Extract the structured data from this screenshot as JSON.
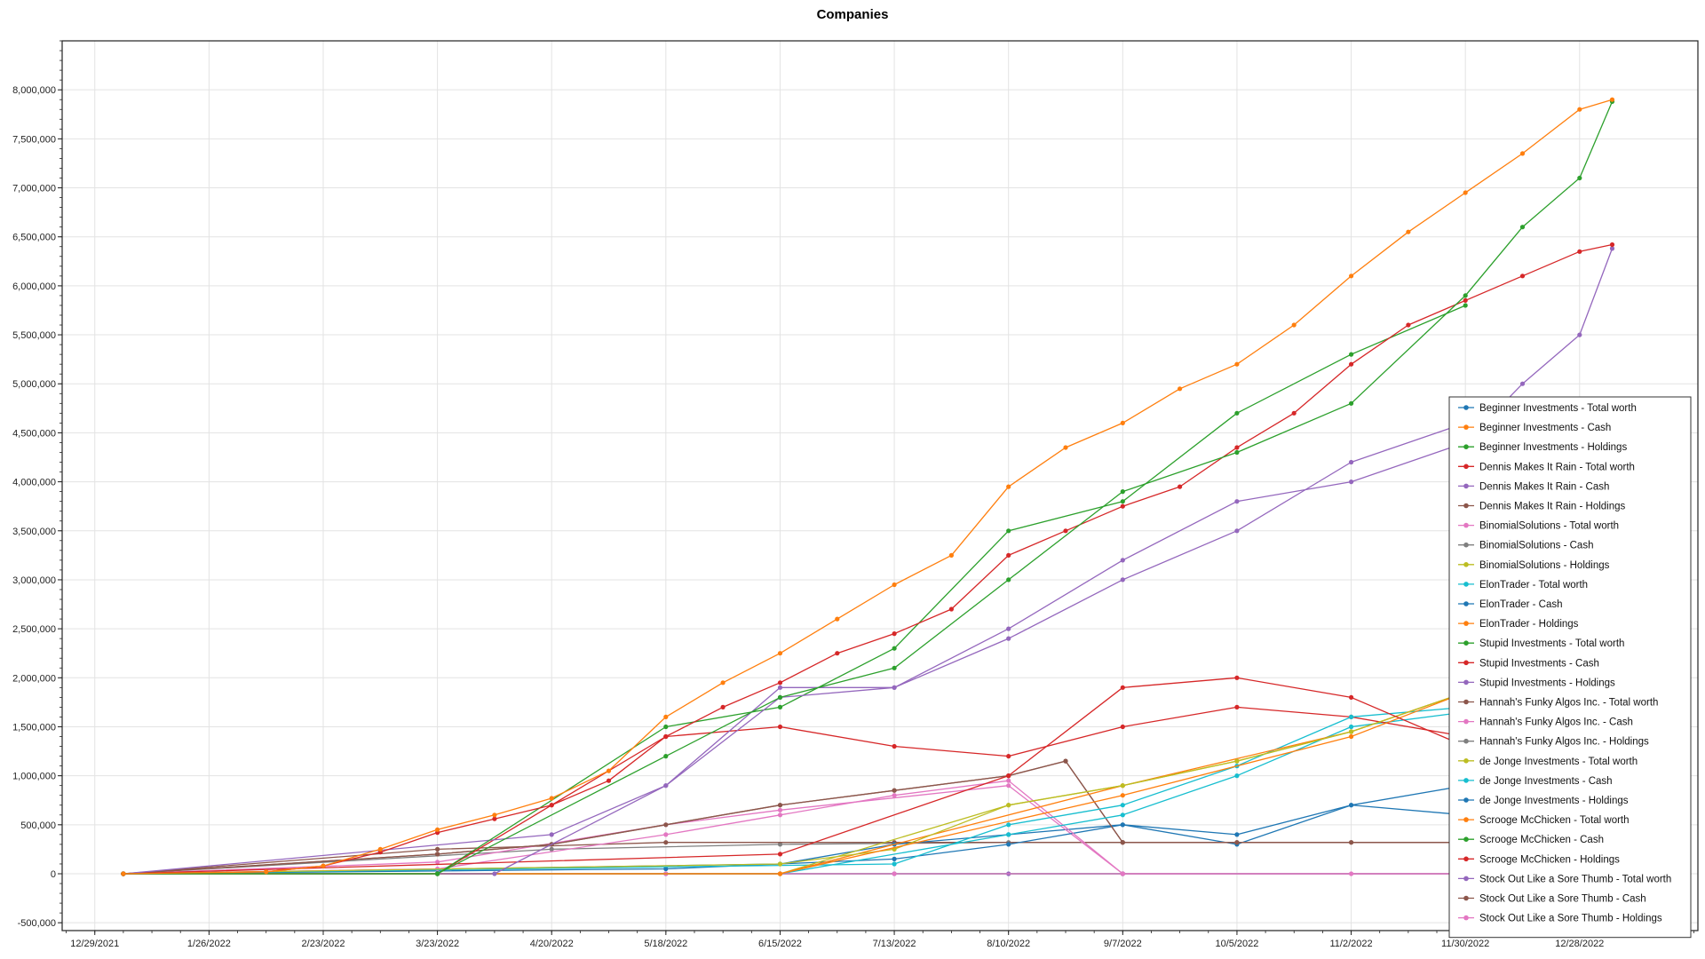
{
  "chart_data": {
    "type": "line",
    "title": "Companies",
    "xlabel": "",
    "ylabel": "",
    "x_ticks": [
      "12/29/2021",
      "1/26/2022",
      "2/23/2022",
      "3/23/2022",
      "4/20/2022",
      "5/18/2022",
      "6/15/2022",
      "7/13/2022",
      "8/10/2022",
      "9/7/2022",
      "10/5/2022",
      "11/2/2022",
      "11/30/2022",
      "12/28/2022"
    ],
    "x_range": [
      "2021-12-21",
      "2023-01-26"
    ],
    "y_ticks": [
      -500000,
      0,
      500000,
      1000000,
      1500000,
      2000000,
      2500000,
      3000000,
      3500000,
      4000000,
      4500000,
      5000000,
      5500000,
      6000000,
      6500000,
      7000000,
      7500000,
      8000000
    ],
    "ylim": [
      -580000,
      8500000
    ],
    "grid": true,
    "legend_position": "right",
    "series": [
      {
        "name": "Beginner Investments - Total worth",
        "color": "#1f77b4",
        "x": [
          "2022-01-05",
          "2022-03-23",
          "2022-06-15",
          "2022-09-07",
          "2022-11-30",
          "2023-01-05"
        ],
        "y": [
          0,
          0,
          0,
          0,
          0,
          0
        ]
      },
      {
        "name": "Beginner Investments - Cash",
        "color": "#ff7f0e",
        "x": [
          "2022-01-05",
          "2022-02-09",
          "2022-02-23",
          "2022-03-09",
          "2022-03-23",
          "2022-04-06",
          "2022-04-20",
          "2022-05-04",
          "2022-05-18",
          "2022-06-01",
          "2022-06-15",
          "2022-06-29",
          "2022-07-13",
          "2022-07-27",
          "2022-08-10",
          "2022-08-24",
          "2022-09-07",
          "2022-09-21",
          "2022-10-05",
          "2022-10-19",
          "2022-11-02",
          "2022-11-16",
          "2022-11-30",
          "2022-12-14",
          "2022-12-28",
          "2023-01-05"
        ],
        "y": [
          0,
          20000,
          80000,
          250000,
          450000,
          600000,
          770000,
          1050000,
          1600000,
          1950000,
          2250000,
          2600000,
          2950000,
          3250000,
          3950000,
          4350000,
          4600000,
          4950000,
          5200000,
          5600000,
          6100000,
          6550000,
          6950000,
          7350000,
          7800000,
          7900000
        ]
      },
      {
        "name": "Beginner Investments - Holdings",
        "color": "#2ca02c",
        "x": [
          "2022-01-05",
          "2022-03-23",
          "2022-05-18",
          "2022-06-15",
          "2022-07-13",
          "2022-08-10",
          "2022-09-07",
          "2022-10-05",
          "2022-11-02",
          "2022-11-30",
          "2022-12-14",
          "2022-12-28",
          "2023-01-05"
        ],
        "y": [
          0,
          0,
          1200000,
          1800000,
          2100000,
          3000000,
          3900000,
          4300000,
          4800000,
          5900000,
          6600000,
          7100000,
          7880000
        ]
      },
      {
        "name": "Dennis Makes It Rain - Total worth",
        "color": "#d62728",
        "x": [
          "2022-01-05",
          "2022-02-09",
          "2022-02-23",
          "2022-03-09",
          "2022-03-23",
          "2022-04-06",
          "2022-04-20",
          "2022-05-04",
          "2022-05-18",
          "2022-06-01",
          "2022-06-15",
          "2022-06-29",
          "2022-07-13",
          "2022-07-27",
          "2022-08-10",
          "2022-08-24",
          "2022-09-07",
          "2022-09-21",
          "2022-10-05",
          "2022-10-19",
          "2022-11-02",
          "2022-11-16",
          "2022-11-30",
          "2022-12-14",
          "2022-12-28",
          "2023-01-05"
        ],
        "y": [
          0,
          20000,
          80000,
          220000,
          420000,
          560000,
          700000,
          950000,
          1400000,
          1700000,
          1950000,
          2250000,
          2450000,
          2700000,
          3250000,
          3500000,
          3750000,
          3950000,
          4350000,
          4700000,
          5200000,
          5600000,
          5850000,
          6100000,
          6350000,
          6420000
        ]
      },
      {
        "name": "Dennis Makes It Rain - Cash",
        "color": "#9467bd",
        "x": [
          "2022-01-05",
          "2022-04-06",
          "2022-05-18",
          "2022-06-15",
          "2022-07-13",
          "2022-08-10",
          "2022-09-07",
          "2022-10-05",
          "2022-11-02",
          "2022-11-30",
          "2022-12-14",
          "2022-12-28",
          "2023-01-05"
        ],
        "y": [
          0,
          0,
          900000,
          1800000,
          1900000,
          2500000,
          3200000,
          3800000,
          4000000,
          4400000,
          5000000,
          5500000,
          6380000
        ]
      },
      {
        "name": "Dennis Makes It Rain - Holdings",
        "color": "#8c564b",
        "x": [
          "2022-01-05",
          "2022-03-23",
          "2022-04-20",
          "2022-06-15",
          "2022-07-13",
          "2022-08-10",
          "2022-08-24",
          "2022-09-07",
          "2022-10-05",
          "2022-11-02",
          "2022-11-30",
          "2023-01-05"
        ],
        "y": [
          0,
          200000,
          300000,
          700000,
          850000,
          1000000,
          1150000,
          320000,
          320000,
          320000,
          320000,
          320000
        ]
      },
      {
        "name": "BinomialSolutions - Total worth",
        "color": "#e377c2",
        "x": [
          "2022-01-05",
          "2022-03-23",
          "2022-05-18",
          "2022-06-15",
          "2022-08-10",
          "2022-09-07",
          "2022-11-02",
          "2022-11-30",
          "2023-01-05"
        ],
        "y": [
          0,
          120000,
          500000,
          650000,
          900000,
          0,
          0,
          0,
          0
        ]
      },
      {
        "name": "BinomialSolutions - Cash",
        "color": "#7f7f7f",
        "x": [
          "2022-01-05",
          "2022-06-15",
          "2022-11-30",
          "2023-01-05"
        ],
        "y": [
          0,
          0,
          0,
          0
        ]
      },
      {
        "name": "BinomialSolutions - Holdings",
        "color": "#bcbd22",
        "x": [
          "2022-01-05",
          "2022-06-15",
          "2022-08-10",
          "2022-09-07",
          "2022-10-05",
          "2022-11-02",
          "2022-11-30",
          "2022-12-14"
        ],
        "y": [
          0,
          0,
          700000,
          900000,
          1150000,
          1450000,
          1850000,
          1880000
        ]
      },
      {
        "name": "ElonTrader - Total worth",
        "color": "#17becf",
        "x": [
          "2022-01-05",
          "2022-06-15",
          "2022-08-10",
          "2022-09-07",
          "2022-10-05",
          "2022-11-02",
          "2022-11-30"
        ],
        "y": [
          0,
          0,
          400000,
          600000,
          1000000,
          1500000,
          1650000
        ]
      },
      {
        "name": "ElonTrader - Cash",
        "color": "#1f77b4",
        "x": [
          "2022-01-05",
          "2022-05-18",
          "2022-07-13",
          "2022-08-10",
          "2022-09-07",
          "2022-10-05",
          "2022-11-02",
          "2022-11-30"
        ],
        "y": [
          0,
          50000,
          150000,
          300000,
          500000,
          400000,
          700000,
          900000
        ]
      },
      {
        "name": "ElonTrader - Holdings",
        "color": "#ff7f0e",
        "x": [
          "2022-01-05",
          "2022-06-15",
          "2022-09-07",
          "2022-11-02",
          "2022-11-30",
          "2022-12-14"
        ],
        "y": [
          0,
          0,
          900000,
          1450000,
          1850000,
          1900000
        ]
      },
      {
        "name": "Stupid Investments - Total worth",
        "color": "#2ca02c",
        "x": [
          "2022-01-05",
          "2022-03-23",
          "2022-05-18",
          "2022-06-15",
          "2022-07-13",
          "2022-08-10",
          "2022-09-07",
          "2022-10-05",
          "2022-11-02",
          "2022-11-30"
        ],
        "y": [
          0,
          0,
          1500000,
          1700000,
          2300000,
          3500000,
          3800000,
          4700000,
          5300000,
          5800000
        ]
      },
      {
        "name": "Stupid Investments - Cash",
        "color": "#d62728",
        "x": [
          "2022-01-05",
          "2022-03-23",
          "2022-04-20",
          "2022-05-18",
          "2022-06-15",
          "2022-07-13",
          "2022-08-10",
          "2022-09-07",
          "2022-10-05",
          "2022-11-02",
          "2022-11-30"
        ],
        "y": [
          0,
          0,
          700000,
          1400000,
          1500000,
          1300000,
          1200000,
          1500000,
          1700000,
          1600000,
          1400000
        ]
      },
      {
        "name": "Stupid Investments - Holdings",
        "color": "#9467bd",
        "x": [
          "2022-01-05",
          "2022-04-20",
          "2022-05-18",
          "2022-06-15",
          "2022-07-13",
          "2022-08-10",
          "2022-09-07",
          "2022-10-05",
          "2022-11-02",
          "2022-11-30"
        ],
        "y": [
          0,
          400000,
          900000,
          1900000,
          1900000,
          2400000,
          3000000,
          3500000,
          4200000,
          4600000
        ]
      },
      {
        "name": "Hannah's Funky Algos Inc. - Total worth",
        "color": "#8c564b",
        "x": [
          "2022-01-05",
          "2022-03-23",
          "2022-04-20",
          "2022-05-18",
          "2022-06-15",
          "2022-07-13",
          "2022-08-10",
          "2022-08-24",
          "2022-09-07",
          "2022-10-05",
          "2022-11-02",
          "2022-11-30",
          "2023-01-05"
        ],
        "y": [
          0,
          200000,
          300000,
          500000,
          700000,
          850000,
          1000000,
          1150000,
          320000,
          320000,
          320000,
          320000,
          320000
        ]
      },
      {
        "name": "Hannah's Funky Algos Inc. - Cash",
        "color": "#e377c2",
        "x": [
          "2022-01-05",
          "2022-03-23",
          "2022-05-18",
          "2022-06-15",
          "2022-07-13",
          "2022-08-10",
          "2022-09-07",
          "2022-11-30",
          "2023-01-05"
        ],
        "y": [
          0,
          50000,
          400000,
          600000,
          800000,
          950000,
          0,
          0,
          0
        ]
      },
      {
        "name": "Hannah's Funky Algos Inc. - Holdings",
        "color": "#7f7f7f",
        "x": [
          "2022-01-05",
          "2022-04-20",
          "2022-06-15",
          "2022-08-10",
          "2022-09-07",
          "2022-11-30",
          "2023-01-05"
        ],
        "y": [
          0,
          250000,
          300000,
          320000,
          320000,
          320000,
          320000
        ]
      },
      {
        "name": "de Jonge Investments - Total worth",
        "color": "#bcbd22",
        "x": [
          "2022-01-05",
          "2022-06-15",
          "2022-07-13",
          "2022-08-10",
          "2022-09-07",
          "2022-10-05",
          "2022-11-02",
          "2022-11-30",
          "2022-12-14"
        ],
        "y": [
          0,
          100000,
          250000,
          700000,
          900000,
          1150000,
          1450000,
          1850000,
          1900000
        ]
      },
      {
        "name": "de Jonge Investments - Cash",
        "color": "#17becf",
        "x": [
          "2022-01-05",
          "2022-07-13",
          "2022-08-10",
          "2022-09-07",
          "2022-10-05",
          "2022-11-02",
          "2022-11-30"
        ],
        "y": [
          0,
          100000,
          500000,
          700000,
          1100000,
          1600000,
          1700000
        ]
      },
      {
        "name": "de Jonge Investments - Holdings",
        "color": "#1f77b4",
        "x": [
          "2022-01-05",
          "2022-06-15",
          "2022-07-13",
          "2022-08-10",
          "2022-09-07",
          "2022-10-05",
          "2022-11-02",
          "2022-11-30"
        ],
        "y": [
          0,
          100000,
          300000,
          400000,
          500000,
          300000,
          700000,
          600000
        ]
      },
      {
        "name": "Scrooge McChicken - Total worth",
        "color": "#ff7f0e",
        "x": [
          "2022-01-05",
          "2022-06-15",
          "2022-09-07",
          "2022-11-02",
          "2022-11-30",
          "2022-12-14"
        ],
        "y": [
          0,
          0,
          800000,
          1400000,
          1850000,
          1900000
        ]
      },
      {
        "name": "Scrooge McChicken - Cash",
        "color": "#2ca02c",
        "x": [
          "2022-01-05",
          "2022-03-23",
          "2022-05-18",
          "2022-09-07",
          "2023-01-05"
        ],
        "y": [
          0,
          0,
          0,
          0,
          0
        ]
      },
      {
        "name": "Scrooge McChicken - Holdings",
        "color": "#d62728",
        "x": [
          "2022-01-05",
          "2022-06-15",
          "2022-08-10",
          "2022-09-07",
          "2022-10-05",
          "2022-11-02",
          "2022-11-30"
        ],
        "y": [
          0,
          200000,
          1000000,
          1900000,
          2000000,
          1800000,
          1300000
        ]
      },
      {
        "name": "Stock Out Like a Sore Thumb - Total worth",
        "color": "#9467bd",
        "x": [
          "2022-01-05",
          "2022-07-13",
          "2022-08-10",
          "2022-09-07",
          "2022-11-30",
          "2023-01-05"
        ],
        "y": [
          0,
          0,
          0,
          0,
          0,
          0
        ]
      },
      {
        "name": "Stock Out Like a Sore Thumb - Cash",
        "color": "#8c564b",
        "x": [
          "2022-01-05",
          "2022-03-23",
          "2022-05-18",
          "2022-07-13",
          "2022-09-07",
          "2022-11-30",
          "2023-01-05"
        ],
        "y": [
          0,
          250000,
          320000,
          320000,
          320000,
          320000,
          320000
        ]
      },
      {
        "name": "Stock Out Like a Sore Thumb - Holdings",
        "color": "#e377c2",
        "x": [
          "2022-01-05",
          "2022-03-23",
          "2022-05-18",
          "2022-07-13",
          "2022-09-07",
          "2022-11-30",
          "2023-01-05"
        ],
        "y": [
          0,
          0,
          0,
          0,
          0,
          0,
          0
        ]
      }
    ]
  }
}
